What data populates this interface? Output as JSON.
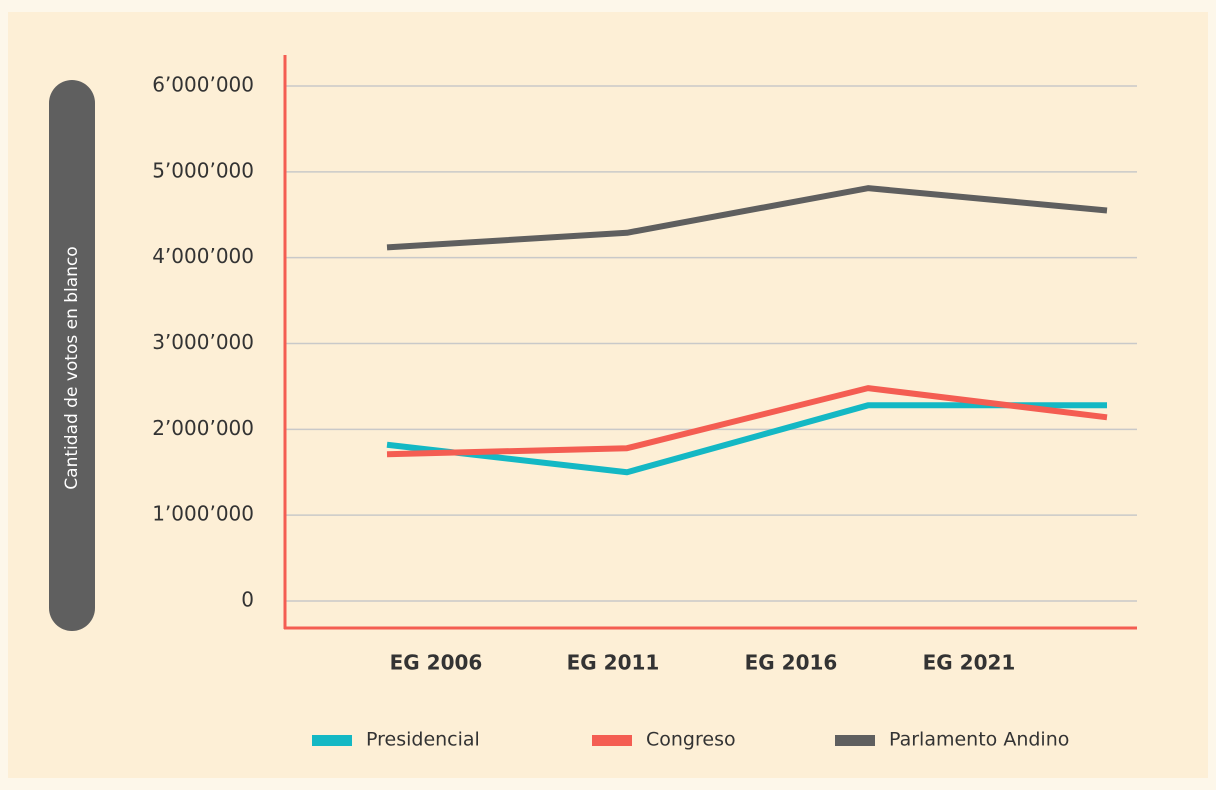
{
  "chart_data": {
    "type": "line",
    "y_label": "Cantidad de votos en blanco",
    "categories": [
      "EG 2006",
      "EG 2011",
      "EG 2016",
      "EG 2021"
    ],
    "series": [
      {
        "name": "Presidencial",
        "color": "#14b8c4",
        "values": [
          1820000,
          1500000,
          2280000,
          2280000
        ]
      },
      {
        "name": "Congreso",
        "color": "#f45d52",
        "values": [
          1710000,
          1780000,
          2480000,
          2140000
        ]
      },
      {
        "name": "Parlamento Andino",
        "color": "#5f5f5f",
        "values": [
          4120000,
          4290000,
          4810000,
          4550000
        ]
      }
    ],
    "ylim": [
      0,
      6000000
    ],
    "yticks": [
      0,
      {
        "value": 1000000,
        "label": "1’000’000"
      },
      {
        "value": 2000000,
        "label": "2’000’000"
      },
      {
        "value": 3000000,
        "label": "3’000’000"
      },
      {
        "value": 4000000,
        "label": "4’000’000"
      },
      {
        "value": 5000000,
        "label": "5’000’000"
      },
      {
        "value": 6000000,
        "label": "6’000’000"
      }
    ],
    "grid": true,
    "axis_color": "#f45d52"
  }
}
